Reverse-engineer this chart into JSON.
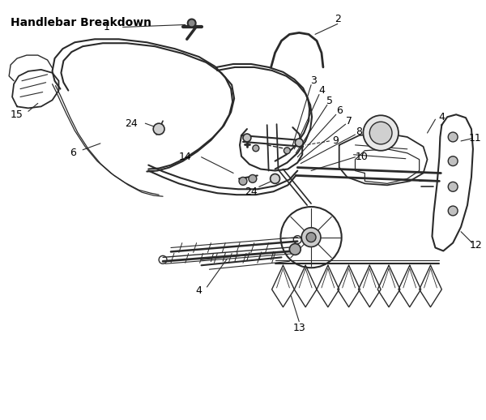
{
  "title": "Handlebar Breakdown",
  "title_fontsize": 10,
  "title_fontweight": "bold",
  "bg_color": "#ffffff",
  "fig_width": 6.0,
  "fig_height": 5.18,
  "dpi": 100,
  "line_color": "#2a2a2a",
  "label_fontsize": 9
}
